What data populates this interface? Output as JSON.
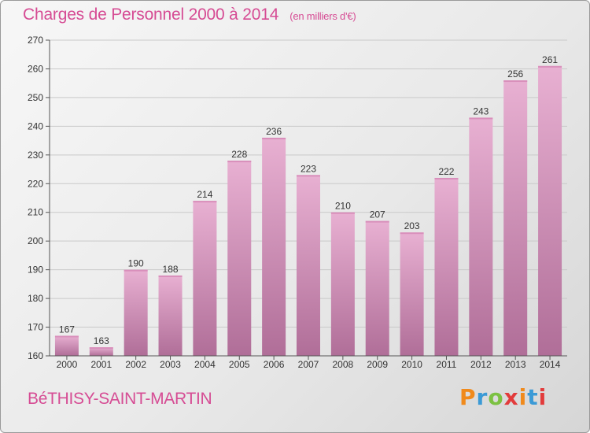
{
  "header": {
    "title": "Charges de Personnel 2000 à 2014",
    "subtitle": "(en milliers d'€)"
  },
  "footer": {
    "commune": "BéTHISY-SAINT-MARTIN",
    "logo_letters": [
      "P",
      "r",
      "o",
      "x",
      "i",
      "t",
      "i"
    ],
    "logo_colors": [
      "#f08a1c",
      "#3b9ad6",
      "#7cc142",
      "#e23b3b",
      "#f08a1c",
      "#3b9ad6",
      "#e23b3b"
    ]
  },
  "colors": {
    "bar_light": "#e8b0d2",
    "bar_dark": "#b06e98",
    "accent": "#d64c94"
  },
  "chart_data": {
    "type": "bar",
    "title": "Charges de Personnel 2000 à 2014",
    "subtitle": "(en milliers d'€)",
    "categories": [
      "2000",
      "2001",
      "2002",
      "2003",
      "2004",
      "2005",
      "2006",
      "2007",
      "2008",
      "2009",
      "2010",
      "2011",
      "2012",
      "2013",
      "2014"
    ],
    "values": [
      167,
      163,
      190,
      188,
      214,
      228,
      236,
      223,
      210,
      207,
      203,
      222,
      243,
      256,
      261
    ],
    "ylim": [
      160,
      270
    ],
    "yticks": [
      160,
      170,
      180,
      190,
      200,
      210,
      220,
      230,
      240,
      250,
      260,
      270
    ],
    "grid": true,
    "xlabel": "",
    "ylabel": ""
  }
}
